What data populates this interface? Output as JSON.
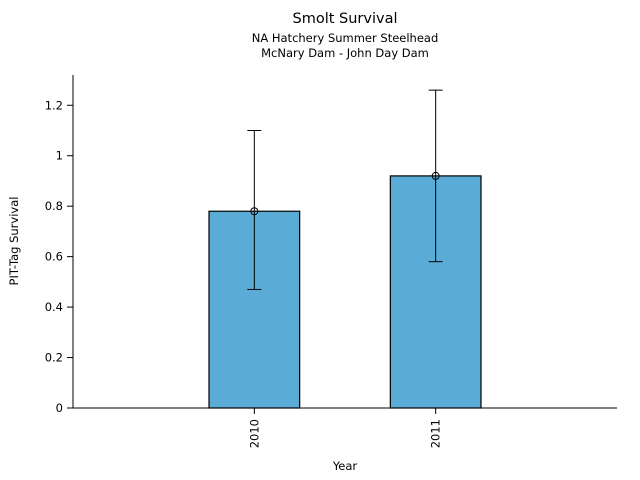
{
  "chart_data": {
    "type": "bar",
    "title": "Smolt Survival",
    "subtitle": [
      "NA Hatchery Summer Steelhead",
      "McNary Dam - John Day Dam"
    ],
    "xlabel": "Year",
    "ylabel": "PIT-Tag Survival",
    "categories": [
      "2010",
      "2011"
    ],
    "values": [
      0.78,
      0.92
    ],
    "error_low": [
      0.47,
      0.58
    ],
    "error_high": [
      1.1,
      1.26
    ],
    "yticks": [
      0,
      0.2,
      0.4,
      0.6,
      0.8,
      1,
      1.2
    ],
    "ytick_labels": [
      "0",
      "0.2",
      "0.4",
      "0.6",
      "0.8",
      "1",
      "1.2"
    ],
    "ylim": [
      0,
      1.32
    ],
    "grid": false,
    "legend": "none",
    "marker": "open-circle",
    "colors": {
      "bar_fill": "#5AACD6",
      "bar_stroke": "#000000",
      "axis": "#000000",
      "text": "#000000",
      "background": "#ffffff"
    }
  }
}
